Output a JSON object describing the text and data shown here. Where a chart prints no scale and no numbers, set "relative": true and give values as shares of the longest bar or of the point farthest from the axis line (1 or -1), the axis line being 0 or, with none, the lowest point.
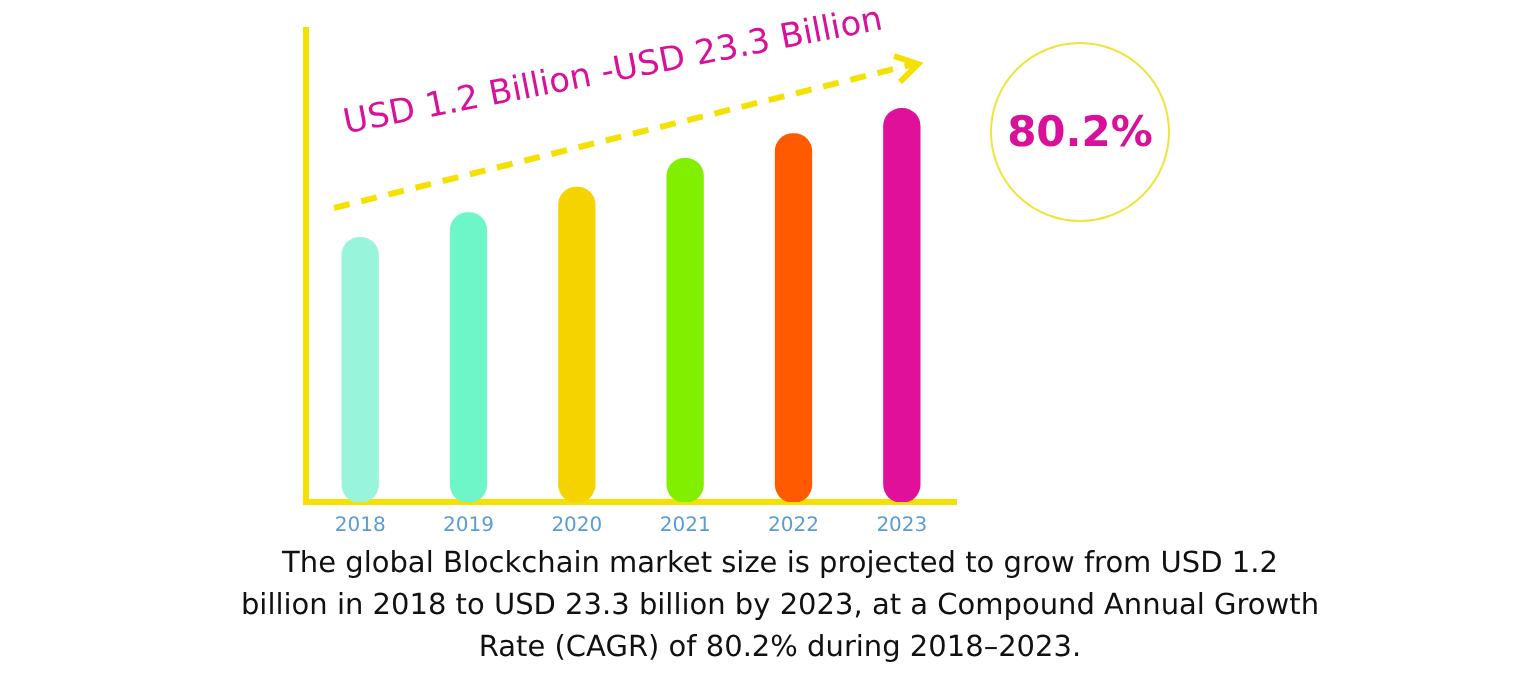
{
  "chart_data": {
    "type": "bar",
    "relative": true,
    "categories": [
      "2018",
      "2019",
      "2020",
      "2021",
      "2022",
      "2023"
    ],
    "values": [
      0.672,
      0.735,
      0.8,
      0.873,
      0.936,
      1
    ],
    "colors": [
      "#98f5dc",
      "#6ef5c8",
      "#f5d300",
      "#80f000",
      "#ff5a00",
      "#e0109a"
    ],
    "annotations": [
      "USD 1.2 Billion -USD 23.3 Billion",
      "80.2%",
      "The global Blockchain market size is projected to grow from USD 1.2 billion in 2018 to USD 23.3 billion by 2023, at a Compound Annual Growth Rate (CAGR) of 80.2% during 2018–2023."
    ],
    "legend": false,
    "grid": false
  }
}
